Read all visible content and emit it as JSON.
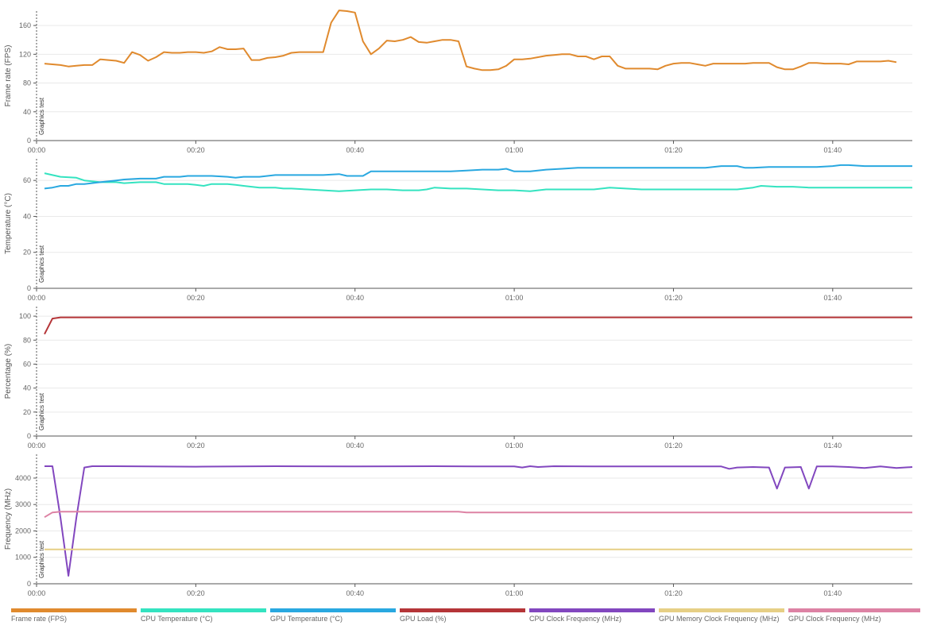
{
  "chart_data": [
    {
      "type": "line",
      "ylabel": "Frame rate (FPS)",
      "marker_label": "Graphics test",
      "ylim": [
        0,
        180
      ],
      "yticks": [
        0,
        40,
        80,
        120,
        160
      ],
      "xlim": [
        0,
        110
      ],
      "xticks": [
        0,
        20,
        40,
        60,
        80,
        100
      ],
      "xtick_labels": [
        "00:00",
        "00:20",
        "00:40",
        "01:00",
        "01:20",
        "01:40"
      ],
      "series": [
        {
          "name": "Frame rate (FPS)",
          "color": "#e08a2e",
          "x": [
            1,
            2,
            3,
            4,
            5,
            6,
            7,
            8,
            9,
            10,
            11,
            12,
            13,
            14,
            15,
            16,
            17,
            18,
            19,
            20,
            21,
            22,
            23,
            24,
            25,
            26,
            27,
            28,
            29,
            30,
            31,
            32,
            33,
            34,
            35,
            36,
            37,
            38,
            39,
            40,
            41,
            42,
            43,
            44,
            45,
            46,
            47,
            48,
            49,
            50,
            51,
            52,
            53,
            54,
            55,
            56,
            57,
            58,
            59,
            60,
            61,
            62,
            63,
            64,
            65,
            66,
            67,
            68,
            69,
            70,
            71,
            72,
            73,
            74,
            75,
            76,
            77,
            78,
            79,
            80,
            81,
            82,
            83,
            84,
            85,
            86,
            87,
            88,
            89,
            90,
            91,
            92,
            93,
            94,
            95,
            96,
            97,
            98,
            99,
            100,
            101,
            102,
            103,
            104,
            105,
            106,
            107,
            108
          ],
          "y": [
            107,
            106,
            105,
            103,
            104,
            105,
            105,
            113,
            112,
            111,
            108,
            123,
            119,
            111,
            116,
            123,
            122,
            122,
            123,
            123,
            122,
            124,
            130,
            127,
            127,
            128,
            112,
            112,
            115,
            116,
            118,
            122,
            123,
            123,
            123,
            123,
            164,
            181,
            180,
            178,
            138,
            120,
            128,
            139,
            138,
            140,
            144,
            137,
            136,
            138,
            140,
            140,
            138,
            103,
            100,
            98,
            98,
            99,
            104,
            113,
            113,
            114,
            116,
            118,
            119,
            120,
            120,
            117,
            117,
            113,
            117,
            117,
            104,
            100,
            100,
            100,
            100,
            99,
            104,
            107,
            108,
            108,
            106,
            104,
            107,
            107,
            107,
            107,
            107,
            108,
            108,
            108,
            102,
            99,
            99,
            103,
            108,
            108,
            107,
            107,
            107,
            106,
            110,
            110,
            110,
            110,
            111,
            109
          ]
        }
      ]
    },
    {
      "type": "line",
      "ylabel": "Temperature (°C)",
      "marker_label": "Graphics test",
      "ylim": [
        0,
        72
      ],
      "yticks": [
        0,
        20,
        40,
        60
      ],
      "xlim": [
        0,
        110
      ],
      "xticks": [
        0,
        20,
        40,
        60,
        80,
        100
      ],
      "xtick_labels": [
        "00:00",
        "00:20",
        "00:40",
        "01:00",
        "01:20",
        "01:40"
      ],
      "series": [
        {
          "name": "CPU Temperature (°C)",
          "color": "#34e3c0",
          "x": [
            1,
            2,
            3,
            5,
            6,
            8,
            10,
            11,
            13,
            15,
            16,
            18,
            19,
            20,
            21,
            22,
            23,
            24,
            25,
            26,
            28,
            30,
            31,
            32,
            34,
            36,
            38,
            40,
            42,
            44,
            46,
            48,
            49,
            50,
            52,
            54,
            56,
            58,
            60,
            62,
            63,
            64,
            66,
            68,
            70,
            72,
            74,
            76,
            78,
            80,
            82,
            84,
            86,
            88,
            89,
            90,
            91,
            93,
            95,
            97,
            99,
            101,
            103,
            105,
            107,
            108,
            109,
            110
          ],
          "y": [
            64,
            63,
            62,
            61.5,
            60,
            59,
            59,
            58.5,
            59,
            59,
            58,
            58,
            58,
            57.5,
            57,
            58,
            58,
            58,
            57.5,
            57,
            56,
            56,
            55.5,
            55.5,
            55,
            54.5,
            54,
            54.5,
            55,
            55,
            54.5,
            54.5,
            55,
            56,
            55.5,
            55.5,
            55,
            54.5,
            54.5,
            54,
            54.5,
            55,
            55,
            55,
            55,
            56,
            55.5,
            55,
            55,
            55,
            55,
            55,
            55,
            55,
            55.5,
            56,
            57,
            56.5,
            56.5,
            56,
            56,
            56,
            56,
            56,
            56,
            56,
            56,
            56
          ]
        },
        {
          "name": "GPU Temperature (°C)",
          "color": "#29a8e0",
          "x": [
            1,
            2,
            3,
            4,
            5,
            6,
            8,
            10,
            11,
            13,
            15,
            16,
            18,
            19,
            20,
            22,
            24,
            25,
            26,
            27,
            28,
            30,
            32,
            34,
            36,
            38,
            39,
            40,
            41,
            42,
            44,
            46,
            48,
            50,
            52,
            54,
            56,
            58,
            59,
            60,
            62,
            64,
            66,
            68,
            70,
            72,
            74,
            76,
            78,
            80,
            82,
            84,
            86,
            88,
            89,
            90,
            92,
            94,
            96,
            98,
            100,
            101,
            102,
            104,
            106,
            108,
            110
          ],
          "y": [
            55.5,
            56,
            57,
            57,
            58,
            58,
            59,
            60,
            60.5,
            61,
            61,
            62,
            62,
            62.5,
            62.5,
            62.5,
            62,
            61.5,
            62,
            62,
            62,
            63,
            63,
            63,
            63,
            63.5,
            62.5,
            62.5,
            62.5,
            65,
            65,
            65,
            65,
            65,
            65,
            65.5,
            66,
            66,
            66.5,
            65,
            65,
            66,
            66.5,
            67,
            67,
            67,
            67,
            67,
            67,
            67,
            67,
            67,
            68,
            68,
            67,
            67,
            67.5,
            67.5,
            67.5,
            67.5,
            68,
            68.5,
            68.5,
            68,
            68,
            68,
            68
          ]
        }
      ]
    },
    {
      "type": "line",
      "ylabel": "Percentage (%)",
      "marker_label": "Graphics test",
      "ylim": [
        0,
        108
      ],
      "yticks": [
        0,
        20,
        40,
        60,
        80,
        100
      ],
      "xlim": [
        0,
        110
      ],
      "xticks": [
        0,
        20,
        40,
        60,
        80,
        100
      ],
      "xtick_labels": [
        "00:00",
        "00:20",
        "00:40",
        "01:00",
        "01:20",
        "01:40"
      ],
      "series": [
        {
          "name": "GPU Load (%)",
          "color": "#b53538",
          "x": [
            1,
            2,
            3,
            4,
            110
          ],
          "y": [
            85,
            98,
            99,
            99,
            99
          ]
        }
      ]
    },
    {
      "type": "line",
      "ylabel": "Frequency (MHz)",
      "marker_label": "Graphics test",
      "ylim": [
        0,
        4900
      ],
      "yticks": [
        0,
        1000,
        2000,
        3000,
        4000
      ],
      "xlim": [
        0,
        110
      ],
      "xticks": [
        0,
        20,
        40,
        60,
        80,
        100
      ],
      "xtick_labels": [
        "00:00",
        "00:20",
        "00:40",
        "01:00",
        "01:20",
        "01:40"
      ],
      "series": [
        {
          "name": "CPU Clock Frequency (MHz)",
          "color": "#8247bf",
          "x": [
            1,
            2,
            3,
            4,
            5,
            6,
            7,
            10,
            20,
            30,
            40,
            50,
            55,
            60,
            61,
            62,
            63,
            65,
            70,
            80,
            86,
            87,
            88,
            90,
            92,
            93,
            94,
            96,
            97,
            98,
            100,
            102,
            104,
            106,
            108,
            110
          ],
          "y": [
            4450,
            4450,
            2500,
            300,
            2500,
            4400,
            4450,
            4450,
            4430,
            4450,
            4440,
            4450,
            4440,
            4440,
            4400,
            4450,
            4420,
            4450,
            4440,
            4440,
            4440,
            4350,
            4400,
            4420,
            4400,
            3600,
            4400,
            4420,
            3600,
            4440,
            4440,
            4420,
            4380,
            4440,
            4380,
            4420
          ]
        },
        {
          "name": "GPU Memory Clock Frequency (MHz)",
          "color": "#e6cf85",
          "x": [
            1,
            110
          ],
          "y": [
            1300,
            1300
          ]
        },
        {
          "name": "GPU Clock Frequency (MHz)",
          "color": "#dd82a4",
          "x": [
            1,
            2,
            3,
            10,
            30,
            50,
            53,
            54,
            110
          ],
          "y": [
            2520,
            2700,
            2730,
            2730,
            2730,
            2730,
            2730,
            2700,
            2700
          ]
        }
      ]
    }
  ],
  "legend": [
    {
      "label": "Frame rate (FPS)",
      "color": "#e08a2e"
    },
    {
      "label": "CPU Temperature (°C)",
      "color": "#34e3c0"
    },
    {
      "label": "GPU Temperature (°C)",
      "color": "#29a8e0"
    },
    {
      "label": "GPU Load (%)",
      "color": "#b53538"
    },
    {
      "label": "CPU Clock Frequency (MHz)",
      "color": "#8247bf"
    },
    {
      "label": "GPU Memory Clock Frequency (MHz)",
      "color": "#e6cf85"
    },
    {
      "label": "GPU Clock Frequency (MHz)",
      "color": "#dd82a4"
    }
  ]
}
